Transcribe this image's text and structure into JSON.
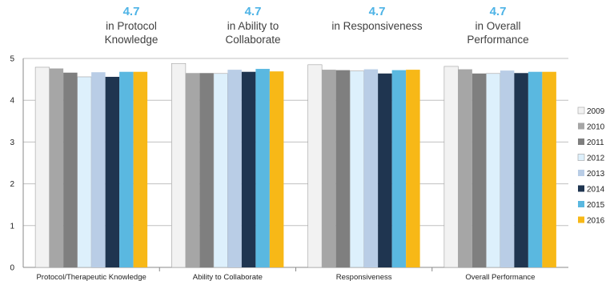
{
  "headlines": [
    {
      "score": "4.7",
      "caption": "in Protocol\nKnowledge"
    },
    {
      "score": "4.7",
      "caption": "in Ability to\nCollaborate"
    },
    {
      "score": "4.7",
      "caption": "in Responsiveness"
    },
    {
      "score": "4.7",
      "caption": "in Overall\nPerformance"
    }
  ],
  "colors": {
    "headline": "#4db3e6",
    "gridline": "#c0c0c0",
    "axis": "#888888",
    "bar_outline": "#a0a0a0"
  },
  "chart_data": {
    "type": "bar",
    "categories": [
      "Protocol/Therapeutic Knowledge",
      "Ability to Collaborate",
      "Responsiveness",
      "Overall Performance"
    ],
    "ylim": [
      0,
      5
    ],
    "yticks": [
      0,
      1,
      2,
      3,
      4,
      5
    ],
    "grid": true,
    "legend_position": "right",
    "series": [
      {
        "name": "2009",
        "color": "#f2f2f2",
        "values": [
          4.79,
          4.88,
          4.85,
          4.81
        ]
      },
      {
        "name": "2010",
        "color": "#a6a6a6",
        "values": [
          4.76,
          4.65,
          4.73,
          4.74
        ]
      },
      {
        "name": "2011",
        "color": "#7f7f7f",
        "values": [
          4.66,
          4.65,
          4.72,
          4.64
        ]
      },
      {
        "name": "2012",
        "color": "#ddf0fc",
        "values": [
          4.56,
          4.64,
          4.7,
          4.64
        ]
      },
      {
        "name": "2013",
        "color": "#b9cde6",
        "values": [
          4.67,
          4.73,
          4.74,
          4.71
        ]
      },
      {
        "name": "2014",
        "color": "#1f3550",
        "values": [
          4.56,
          4.68,
          4.64,
          4.65
        ]
      },
      {
        "name": "2015",
        "color": "#5ab8e0",
        "values": [
          4.68,
          4.75,
          4.72,
          4.68
        ]
      },
      {
        "name": "2016",
        "color": "#f7b817",
        "values": [
          4.68,
          4.69,
          4.73,
          4.68
        ]
      }
    ]
  }
}
